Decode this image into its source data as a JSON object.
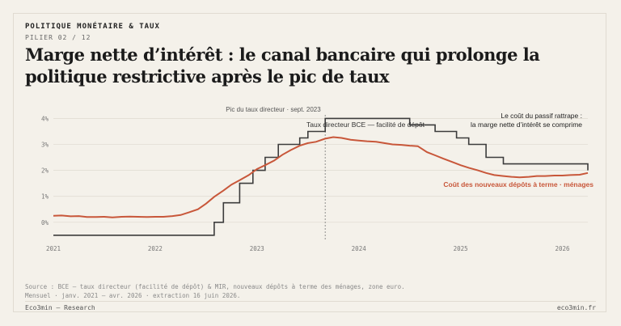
{
  "header": {
    "kicker": "POLITIQUE MONÉTAIRE & TAUX",
    "sub": "PILIER 02 / 12",
    "title": "Marge nette d’intérêt : le canal bancaire qui prolonge la politique restrictive après le pic de taux"
  },
  "source": {
    "line1": "Source : BCE — taux directeur (facilité de dépôt) & MIR, nouveaux dépôts à terme des ménages, zone euro.",
    "line2": "Mensuel · janv. 2021 – avr. 2026 · extraction 16 juin 2026."
  },
  "footer": {
    "left": "Eco3min — Research",
    "right": "eco3min.fr"
  },
  "colors": {
    "policy": "#3c3c3c",
    "deposit": "#c8573a",
    "grid": "#e2ddd3"
  },
  "chart_data": {
    "type": "line",
    "xlim": [
      2021.0,
      2026.25
    ],
    "ylim": [
      -0.6,
      4.2
    ],
    "y_ticks": [
      0,
      1,
      2,
      3,
      4
    ],
    "y_tick_labels": [
      "0%",
      "1%",
      "2%",
      "3%",
      "4%"
    ],
    "x_ticks": [
      2021,
      2022,
      2023,
      2024,
      2025,
      2026
    ],
    "x_tick_labels": [
      "2021",
      "2022",
      "2023",
      "2024",
      "2025",
      "2026"
    ],
    "annotations": {
      "peak": {
        "x": 2023.67,
        "label": "Pic du taux directeur · sept. 2023"
      },
      "right_note_1": "Le coût du passif rattrape :",
      "right_note_2": "la marge nette d’intérêt se comprime"
    },
    "series": [
      {
        "name": "Taux directeur BCE — facilité de dépôt",
        "step": true,
        "x": [
          2021.0,
          2022.5,
          2022.58,
          2022.67,
          2022.83,
          2022.96,
          2023.08,
          2023.21,
          2023.42,
          2023.5,
          2023.67,
          2024.42,
          2024.5,
          2024.75,
          2024.96,
          2025.08,
          2025.25,
          2025.42,
          2026.25
        ],
        "values": [
          -0.5,
          -0.5,
          0.0,
          0.75,
          1.5,
          2.0,
          2.5,
          3.0,
          3.25,
          3.5,
          4.0,
          4.0,
          3.75,
          3.5,
          3.25,
          3.0,
          2.5,
          2.25,
          2.0
        ]
      },
      {
        "name": "Coût des nouveaux dépôts à terme · ménages",
        "step": false,
        "x": [
          2021.0,
          2021.08,
          2021.17,
          2021.25,
          2021.33,
          2021.42,
          2021.5,
          2021.58,
          2021.67,
          2021.75,
          2021.83,
          2021.92,
          2022.0,
          2022.08,
          2022.17,
          2022.25,
          2022.33,
          2022.42,
          2022.5,
          2022.58,
          2022.67,
          2022.75,
          2022.83,
          2022.92,
          2023.0,
          2023.08,
          2023.17,
          2023.25,
          2023.33,
          2023.42,
          2023.5,
          2023.58,
          2023.67,
          2023.75,
          2023.83,
          2023.92,
          2024.0,
          2024.08,
          2024.17,
          2024.25,
          2024.33,
          2024.42,
          2024.5,
          2024.58,
          2024.67,
          2024.75,
          2024.83,
          2024.92,
          2025.0,
          2025.08,
          2025.17,
          2025.25,
          2025.33,
          2025.42,
          2025.5,
          2025.58,
          2025.67,
          2025.75,
          2025.83,
          2025.92,
          2026.0,
          2026.08,
          2026.17,
          2026.25
        ],
        "values": [
          0.25,
          0.26,
          0.23,
          0.24,
          0.2,
          0.2,
          0.21,
          0.19,
          0.21,
          0.22,
          0.21,
          0.2,
          0.21,
          0.21,
          0.24,
          0.28,
          0.38,
          0.5,
          0.72,
          0.98,
          1.22,
          1.45,
          1.62,
          1.82,
          2.05,
          2.2,
          2.38,
          2.6,
          2.78,
          2.95,
          3.05,
          3.1,
          3.22,
          3.28,
          3.25,
          3.18,
          3.15,
          3.12,
          3.1,
          3.05,
          3.0,
          2.98,
          2.95,
          2.93,
          2.7,
          2.58,
          2.45,
          2.32,
          2.2,
          2.1,
          2.0,
          1.9,
          1.82,
          1.78,
          1.75,
          1.73,
          1.75,
          1.78,
          1.78,
          1.8,
          1.8,
          1.82,
          1.83,
          1.9
        ]
      }
    ]
  }
}
